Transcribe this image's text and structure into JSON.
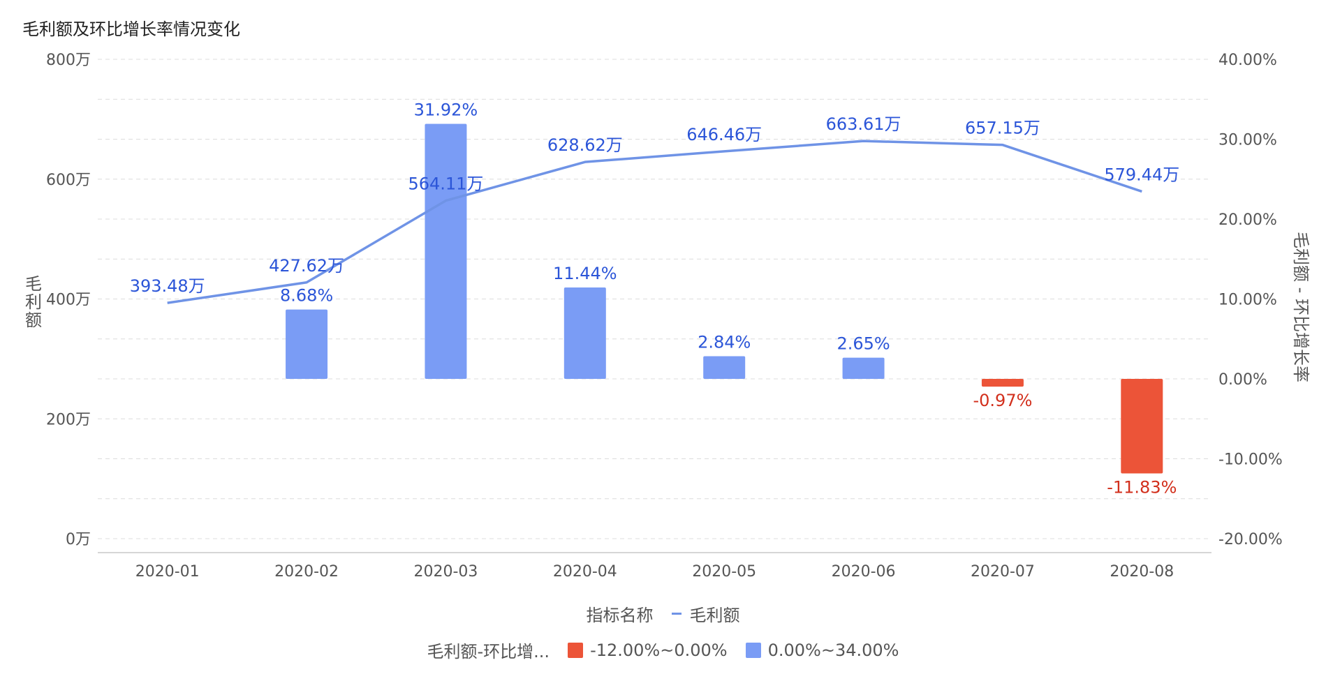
{
  "chart_title": "毛利额及环比增长率情况变化",
  "colors": {
    "line": "#6f93e6",
    "bar_positive": "#7a9cf5",
    "bar_negative": "#ec5438",
    "label_blue": "#2b55d8",
    "label_red": "#d22f1c"
  },
  "chart_data": {
    "type": "bar+line",
    "title": "毛利额及环比增长率情况变化",
    "categories": [
      "2020-01",
      "2020-02",
      "2020-03",
      "2020-04",
      "2020-05",
      "2020-06",
      "2020-07",
      "2020-08"
    ],
    "line_series": {
      "name": "毛利额",
      "values": [
        393.48,
        427.62,
        564.11,
        628.62,
        646.46,
        663.61,
        657.15,
        579.44
      ],
      "labels": [
        "393.48万",
        "427.62万",
        "564.11万",
        "628.62万",
        "646.46万",
        "663.61万",
        "657.15万",
        "579.44万"
      ]
    },
    "bar_series": {
      "name": "毛利额-环比增长率",
      "values": [
        null,
        8.68,
        31.92,
        11.44,
        2.84,
        2.65,
        -0.97,
        -11.83
      ],
      "labels": [
        "",
        "8.68%",
        "31.92%",
        "11.44%",
        "2.84%",
        "2.65%",
        "-0.97%",
        "-11.83%"
      ]
    },
    "y_left": {
      "label": "毛利额",
      "ticks": [
        "0万",
        "200万",
        "400万",
        "600万",
        "800万"
      ],
      "range": [
        0,
        800
      ]
    },
    "y_right": {
      "label": "毛利额 - 环比增长率",
      "ticks": [
        "-20.00%",
        "-10.00%",
        "0.00%",
        "10.00%",
        "20.00%",
        "30.00%",
        "40.00%"
      ],
      "range": [
        -20,
        40
      ]
    }
  },
  "legend": {
    "line_title": "指标名称",
    "line_item": "毛利额",
    "bar_title": "毛利额-环比增...",
    "bar_items": [
      {
        "label": "-12.00%~0.00%",
        "color": "#ec5438"
      },
      {
        "label": "0.00%~34.00%",
        "color": "#7a9cf5"
      }
    ]
  }
}
